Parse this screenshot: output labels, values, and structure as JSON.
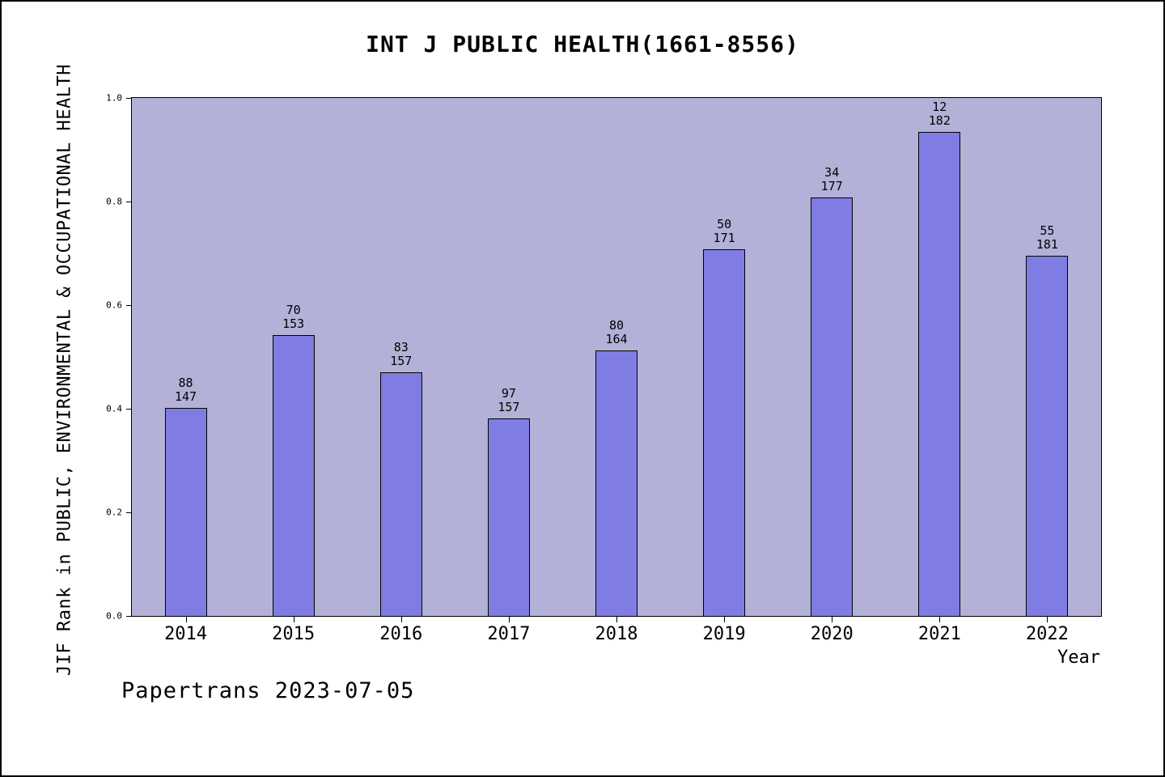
{
  "footer": "Papertrans 2023-07-05",
  "colors": {
    "plot_bg": "#b3b1d8",
    "bar_fill": "#7f7de3",
    "frame": "#000000"
  },
  "chart_data": {
    "type": "bar",
    "title": "INT J PUBLIC HEALTH(1661-8556)",
    "xlabel": "Year",
    "ylabel": "JIF Rank in PUBLIC, ENVIRONMENTAL & OCCUPATIONAL HEALTH",
    "categories": [
      "2014",
      "2015",
      "2016",
      "2017",
      "2018",
      "2019",
      "2020",
      "2021",
      "2022"
    ],
    "values": [
      0.401,
      0.542,
      0.471,
      0.382,
      0.512,
      0.708,
      0.808,
      0.934,
      0.696
    ],
    "bar_labels": [
      {
        "rank": "88",
        "total": "147"
      },
      {
        "rank": "70",
        "total": "153"
      },
      {
        "rank": "83",
        "total": "157"
      },
      {
        "rank": "97",
        "total": "157"
      },
      {
        "rank": "80",
        "total": "164"
      },
      {
        "rank": "50",
        "total": "171"
      },
      {
        "rank": "34",
        "total": "177"
      },
      {
        "rank": "12",
        "total": "182"
      },
      {
        "rank": "55",
        "total": "181"
      }
    ],
    "ylim": [
      0.0,
      1.0
    ],
    "yticks": [
      "0.0",
      "0.2",
      "0.4",
      "0.6",
      "0.8",
      "1.0"
    ],
    "grid": false,
    "legend": null
  }
}
